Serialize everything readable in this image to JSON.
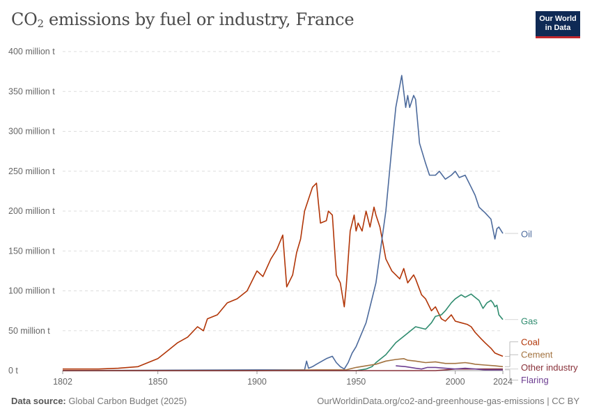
{
  "header": {
    "title_main": "CO",
    "title_sub": "2",
    "title_rest": " emissions by fuel or industry, France",
    "logo_line1": "Our World",
    "logo_line2": "in Data"
  },
  "footer": {
    "source_label": "Data source:",
    "source_value": " Global Carbon Budget (2025)",
    "url": "OurWorldinData.org/co2-and-greenhouse-gas-emissions | CC BY"
  },
  "colors": {
    "oil": "#4c6a9c",
    "gas": "#2e8b6e",
    "coal": "#b13507",
    "cement": "#a2723f",
    "other": "#883039",
    "flaring": "#6d3e91"
  },
  "chart_data": {
    "type": "line",
    "title": "CO2 emissions by fuel or industry, France",
    "xlabel": "",
    "ylabel": "",
    "xlim": [
      1802,
      2024
    ],
    "ylim": [
      0,
      400
    ],
    "x_ticks": [
      "1802",
      "1850",
      "1900",
      "1950",
      "2000",
      "2024"
    ],
    "y_ticks": [
      "0 t",
      "50 million t",
      "100 million t",
      "150 million t",
      "200 million t",
      "250 million t",
      "300 million t",
      "350 million t",
      "400 million t"
    ],
    "y_tick_values": [
      0,
      50,
      100,
      150,
      200,
      250,
      300,
      350,
      400
    ],
    "grid": "horizontal-dashed",
    "legend": "labels at right end of lines",
    "series": [
      {
        "name": "Coal",
        "color": "#b13507",
        "points": [
          [
            1802,
            2
          ],
          [
            1820,
            2
          ],
          [
            1830,
            3
          ],
          [
            1840,
            5
          ],
          [
            1845,
            10
          ],
          [
            1850,
            15
          ],
          [
            1855,
            25
          ],
          [
            1860,
            35
          ],
          [
            1865,
            42
          ],
          [
            1870,
            55
          ],
          [
            1873,
            50
          ],
          [
            1875,
            65
          ],
          [
            1880,
            70
          ],
          [
            1885,
            85
          ],
          [
            1890,
            90
          ],
          [
            1895,
            100
          ],
          [
            1900,
            125
          ],
          [
            1903,
            118
          ],
          [
            1907,
            140
          ],
          [
            1910,
            152
          ],
          [
            1913,
            170
          ],
          [
            1915,
            105
          ],
          [
            1918,
            120
          ],
          [
            1920,
            148
          ],
          [
            1922,
            165
          ],
          [
            1924,
            200
          ],
          [
            1926,
            215
          ],
          [
            1928,
            230
          ],
          [
            1930,
            235
          ],
          [
            1931,
            210
          ],
          [
            1932,
            185
          ],
          [
            1935,
            188
          ],
          [
            1936,
            200
          ],
          [
            1938,
            195
          ],
          [
            1940,
            120
          ],
          [
            1942,
            110
          ],
          [
            1944,
            80
          ],
          [
            1945,
            105
          ],
          [
            1947,
            175
          ],
          [
            1949,
            195
          ],
          [
            1950,
            175
          ],
          [
            1951,
            185
          ],
          [
            1953,
            175
          ],
          [
            1955,
            200
          ],
          [
            1957,
            180
          ],
          [
            1959,
            205
          ],
          [
            1960,
            195
          ],
          [
            1962,
            180
          ],
          [
            1965,
            140
          ],
          [
            1968,
            125
          ],
          [
            1970,
            120
          ],
          [
            1972,
            115
          ],
          [
            1974,
            128
          ],
          [
            1976,
            110
          ],
          [
            1979,
            120
          ],
          [
            1980,
            115
          ],
          [
            1983,
            95
          ],
          [
            1985,
            90
          ],
          [
            1988,
            75
          ],
          [
            1990,
            80
          ],
          [
            1993,
            65
          ],
          [
            1995,
            62
          ],
          [
            1998,
            70
          ],
          [
            2000,
            62
          ],
          [
            2003,
            60
          ],
          [
            2006,
            58
          ],
          [
            2008,
            55
          ],
          [
            2010,
            48
          ],
          [
            2013,
            40
          ],
          [
            2015,
            35
          ],
          [
            2018,
            28
          ],
          [
            2020,
            22
          ],
          [
            2022,
            20
          ],
          [
            2024,
            18
          ]
        ]
      },
      {
        "name": "Oil",
        "color": "#4c6a9c",
        "points": [
          [
            1802,
            0
          ],
          [
            1900,
            1
          ],
          [
            1920,
            1
          ],
          [
            1924,
            1
          ],
          [
            1925,
            12
          ],
          [
            1926,
            3
          ],
          [
            1928,
            5
          ],
          [
            1930,
            8
          ],
          [
            1935,
            15
          ],
          [
            1938,
            18
          ],
          [
            1940,
            10
          ],
          [
            1942,
            5
          ],
          [
            1944,
            2
          ],
          [
            1946,
            10
          ],
          [
            1948,
            22
          ],
          [
            1950,
            30
          ],
          [
            1955,
            60
          ],
          [
            1960,
            110
          ],
          [
            1965,
            200
          ],
          [
            1968,
            280
          ],
          [
            1970,
            330
          ],
          [
            1973,
            370
          ],
          [
            1975,
            330
          ],
          [
            1976,
            345
          ],
          [
            1977,
            330
          ],
          [
            1979,
            345
          ],
          [
            1980,
            340
          ],
          [
            1982,
            285
          ],
          [
            1985,
            260
          ],
          [
            1987,
            245
          ],
          [
            1990,
            245
          ],
          [
            1992,
            250
          ],
          [
            1995,
            240
          ],
          [
            1998,
            245
          ],
          [
            2000,
            250
          ],
          [
            2002,
            242
          ],
          [
            2005,
            245
          ],
          [
            2008,
            230
          ],
          [
            2010,
            220
          ],
          [
            2012,
            205
          ],
          [
            2015,
            198
          ],
          [
            2018,
            190
          ],
          [
            2020,
            165
          ],
          [
            2021,
            178
          ],
          [
            2022,
            180
          ],
          [
            2024,
            172
          ]
        ]
      },
      {
        "name": "Gas",
        "color": "#2e8b6e",
        "points": [
          [
            1802,
            0
          ],
          [
            1950,
            0
          ],
          [
            1955,
            2
          ],
          [
            1958,
            5
          ],
          [
            1960,
            10
          ],
          [
            1965,
            20
          ],
          [
            1970,
            35
          ],
          [
            1975,
            45
          ],
          [
            1980,
            55
          ],
          [
            1985,
            52
          ],
          [
            1988,
            60
          ],
          [
            1990,
            68
          ],
          [
            1993,
            70
          ],
          [
            1995,
            75
          ],
          [
            1998,
            85
          ],
          [
            2000,
            90
          ],
          [
            2003,
            95
          ],
          [
            2005,
            92
          ],
          [
            2008,
            96
          ],
          [
            2010,
            92
          ],
          [
            2012,
            88
          ],
          [
            2014,
            78
          ],
          [
            2016,
            85
          ],
          [
            2018,
            88
          ],
          [
            2019,
            85
          ],
          [
            2020,
            80
          ],
          [
            2021,
            82
          ],
          [
            2022,
            70
          ],
          [
            2024,
            64
          ]
        ]
      },
      {
        "name": "Cement",
        "color": "#a2723f",
        "points": [
          [
            1802,
            0
          ],
          [
            1900,
            0
          ],
          [
            1930,
            1
          ],
          [
            1940,
            1
          ],
          [
            1945,
            1
          ],
          [
            1950,
            4
          ],
          [
            1955,
            6
          ],
          [
            1960,
            8
          ],
          [
            1965,
            12
          ],
          [
            1970,
            14
          ],
          [
            1974,
            15
          ],
          [
            1976,
            13
          ],
          [
            1980,
            12
          ],
          [
            1985,
            10
          ],
          [
            1990,
            11
          ],
          [
            1995,
            9
          ],
          [
            2000,
            9
          ],
          [
            2005,
            10
          ],
          [
            2008,
            9
          ],
          [
            2010,
            8
          ],
          [
            2015,
            7
          ],
          [
            2020,
            6
          ],
          [
            2024,
            5
          ]
        ]
      },
      {
        "name": "Other industry",
        "color": "#883039",
        "points": [
          [
            1802,
            0
          ],
          [
            1990,
            0
          ],
          [
            1995,
            1
          ],
          [
            2000,
            2
          ],
          [
            2010,
            2
          ],
          [
            2024,
            2
          ]
        ]
      },
      {
        "name": "Flaring",
        "color": "#6d3e91",
        "points": [
          [
            1970,
            6
          ],
          [
            1975,
            5
          ],
          [
            1980,
            3
          ],
          [
            1983,
            2
          ],
          [
            1986,
            4
          ],
          [
            1990,
            4
          ],
          [
            1995,
            3
          ],
          [
            2000,
            2
          ],
          [
            2005,
            3
          ],
          [
            2010,
            2
          ],
          [
            2015,
            1
          ],
          [
            2020,
            1
          ],
          [
            2024,
            1
          ]
        ]
      }
    ],
    "end_labels": [
      {
        "name": "Oil",
        "text": "Oil",
        "color": "#4c6a9c",
        "value": 172,
        "label_value": 171
      },
      {
        "name": "Gas",
        "text": "Gas",
        "color": "#2e8b6e",
        "value": 64,
        "label_value": 62
      },
      {
        "name": "Coal",
        "text": "Coal",
        "color": "#b13507",
        "value": 18,
        "label_value": 36
      },
      {
        "name": "Cement",
        "text": "Cement",
        "color": "#a2723f",
        "value": 5,
        "label_value": 20
      },
      {
        "name": "Other industry",
        "text": "Other industry",
        "color": "#883039",
        "value": 2,
        "label_value": 4
      },
      {
        "name": "Flaring",
        "text": "Flaring",
        "color": "#6d3e91",
        "value": 1,
        "label_value": -12
      }
    ]
  }
}
